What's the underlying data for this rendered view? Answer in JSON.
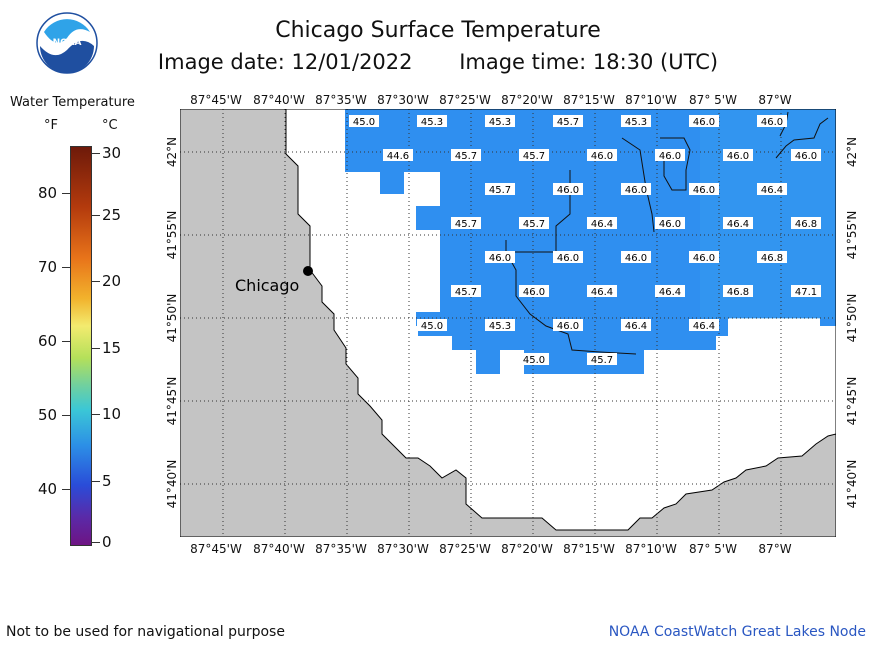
{
  "header": {
    "title": "Chicago Surface Temperature",
    "image_date": "Image date: 12/01/2022",
    "image_time": "Image time: 18:30 (UTC)",
    "logo_text": "NOAA"
  },
  "legend": {
    "title": "Water Temperature",
    "unit_f": "°F",
    "unit_c": "°C",
    "ticks_f": [
      "80",
      "70",
      "60",
      "50",
      "40"
    ],
    "ticks_c": [
      "30",
      "25",
      "20",
      "15",
      "10",
      "5",
      "0"
    ],
    "colors": [
      "#6e1a0a",
      "#e8741a",
      "#f3eb6f",
      "#6fd0a0",
      "#2c8fe6",
      "#6e1483"
    ]
  },
  "map": {
    "lon_labels": [
      "87°45'W",
      "87°40'W",
      "87°35'W",
      "87°30'W",
      "87°25'W",
      "87°20'W",
      "87°15'W",
      "87°10'W",
      "87° 5'W",
      "87°W"
    ],
    "lat_labels": [
      "42°N",
      "41°55'N",
      "41°50'N",
      "41°45'N",
      "41°40'N"
    ],
    "city": "Chicago",
    "land_color": "#c4c4c4",
    "water_color": "#2f8ff0",
    "temps": [
      {
        "v": "45.0",
        "c": 4,
        "r": 0
      },
      {
        "v": "45.3",
        "c": 5,
        "r": 0
      },
      {
        "v": "45.3",
        "c": 6,
        "r": 0
      },
      {
        "v": "45.7",
        "c": 7,
        "r": 0
      },
      {
        "v": "45.3",
        "c": 8,
        "r": 0
      },
      {
        "v": "46.0",
        "c": 9,
        "r": 0
      },
      {
        "v": "46.0",
        "c": 10,
        "r": 0
      },
      {
        "v": "44.6",
        "c": 4.5,
        "r": 1
      },
      {
        "v": "45.7",
        "c": 5.5,
        "r": 1
      },
      {
        "v": "45.7",
        "c": 6.5,
        "r": 1
      },
      {
        "v": "46.0",
        "c": 7.5,
        "r": 1
      },
      {
        "v": "46.0",
        "c": 8.5,
        "r": 1
      },
      {
        "v": "46.0",
        "c": 9.5,
        "r": 1
      },
      {
        "v": "46.0",
        "c": 10.5,
        "r": 1
      },
      {
        "v": "45.7",
        "c": 6,
        "r": 2
      },
      {
        "v": "46.0",
        "c": 7,
        "r": 2
      },
      {
        "v": "46.0",
        "c": 8,
        "r": 2
      },
      {
        "v": "46.0",
        "c": 9,
        "r": 2
      },
      {
        "v": "46.4",
        "c": 10,
        "r": 2
      },
      {
        "v": "45.7",
        "c": 5.5,
        "r": 3
      },
      {
        "v": "45.7",
        "c": 6.5,
        "r": 3
      },
      {
        "v": "46.4",
        "c": 7.5,
        "r": 3
      },
      {
        "v": "46.0",
        "c": 8.5,
        "r": 3
      },
      {
        "v": "46.4",
        "c": 9.5,
        "r": 3
      },
      {
        "v": "46.8",
        "c": 10.5,
        "r": 3
      },
      {
        "v": "46.0",
        "c": 6,
        "r": 4
      },
      {
        "v": "46.0",
        "c": 7,
        "r": 4
      },
      {
        "v": "46.0",
        "c": 8,
        "r": 4
      },
      {
        "v": "46.0",
        "c": 9,
        "r": 4
      },
      {
        "v": "46.8",
        "c": 10,
        "r": 4
      },
      {
        "v": "45.7",
        "c": 5.5,
        "r": 5
      },
      {
        "v": "46.0",
        "c": 6.5,
        "r": 5
      },
      {
        "v": "46.4",
        "c": 7.5,
        "r": 5
      },
      {
        "v": "46.4",
        "c": 8.5,
        "r": 5
      },
      {
        "v": "46.8",
        "c": 9.5,
        "r": 5
      },
      {
        "v": "47.1",
        "c": 10.5,
        "r": 5
      },
      {
        "v": "45.0",
        "c": 5,
        "r": 6
      },
      {
        "v": "45.3",
        "c": 6,
        "r": 6
      },
      {
        "v": "46.0",
        "c": 7,
        "r": 6
      },
      {
        "v": "46.4",
        "c": 8,
        "r": 6
      },
      {
        "v": "46.4",
        "c": 9,
        "r": 6
      },
      {
        "v": "45.0",
        "c": 6.5,
        "r": 7
      },
      {
        "v": "45.7",
        "c": 7.5,
        "r": 7
      }
    ]
  },
  "footer": {
    "disclaimer": "Not to be used for navigational purpose",
    "credit": "NOAA CoastWatch Great Lakes Node"
  }
}
